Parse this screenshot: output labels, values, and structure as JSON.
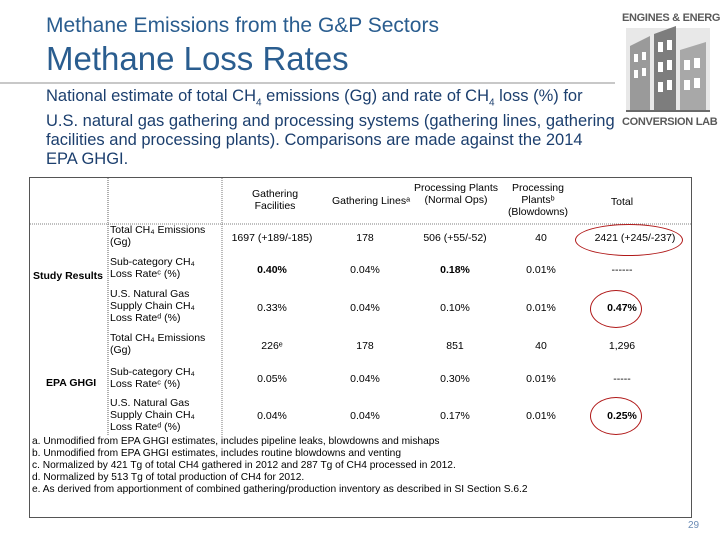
{
  "header": {
    "subtitle": "Methane Emissions from the G&P Sectors",
    "title": "Methane Loss Rates"
  },
  "description": {
    "part1": "National estimate of total CH",
    "sub1": "4",
    "part2": " emissions (Gg) and rate of CH",
    "sub2": "4",
    "part3": " loss (%) for U.S. natural gas gathering and processing systems (gathering lines, gathering facilities and processing plants).  Comparisons are made against the 2014 EPA GHGI."
  },
  "logo": {
    "line1": "ENGINES & ENERGY",
    "line2": "CONVERSION LAB"
  },
  "table": {
    "columns": [
      "Gathering Facilities",
      "Gathering Linesᵃ",
      "Processing Plants (Normal Ops)",
      "Processing Plantsᵇ (Blowdowns)",
      "Total"
    ],
    "groups": [
      {
        "label": "Study Results",
        "rows": [
          {
            "label": "Total CH₄ Emissions (Gg)",
            "cells": [
              "1697 (+189/-185)",
              "178",
              "506 (+55/-52)",
              "40",
              "2421 (+245/-237)"
            ]
          },
          {
            "label": "Sub-category CH₄ Loss Rateᶜ (%)",
            "cells": [
              "0.40%",
              "0.04%",
              "0.18%",
              "0.01%",
              "------"
            ]
          },
          {
            "label": "U.S. Natural Gas Supply Chain CH₄ Loss Rateᵈ (%)",
            "cells": [
              "0.33%",
              "0.04%",
              "0.10%",
              "0.01%",
              "0.47%"
            ]
          }
        ]
      },
      {
        "label": "EPA GHGI",
        "rows": [
          {
            "label": "Total CH₄ Emissions (Gg)",
            "cells": [
              "226ᵉ",
              "178",
              "851",
              "40",
              "1,296"
            ]
          },
          {
            "label": "Sub-category CH₄ Loss Rateᶜ (%)",
            "cells": [
              "0.05%",
              "0.04%",
              "0.30%",
              "0.01%",
              "-----"
            ]
          },
          {
            "label": "U.S. Natural Gas Supply Chain CH₄ Loss Rateᵈ (%)",
            "cells": [
              "0.04%",
              "0.04%",
              "0.17%",
              "0.01%",
              "0.25%"
            ]
          }
        ]
      }
    ],
    "notes": [
      "a. Unmodified from EPA GHGI estimates, includes pipeline leaks, blowdowns and mishaps",
      "b. Unmodified from EPA GHGI estimates, includes routine blowdowns and venting",
      "c. Normalized by 421 Tg of total CH4 gathered in 2012 and 287 Tg of CH4 processed in 2012.",
      "d. Normalized by 513 Tg of total production of CH4 for 2012.",
      "e. As derived from apportionment of combined gathering/production inventory as described in SI Section S.6.2"
    ]
  },
  "page_number": "29",
  "colors": {
    "title": "#2a5d8f",
    "circle": "#b01818"
  }
}
